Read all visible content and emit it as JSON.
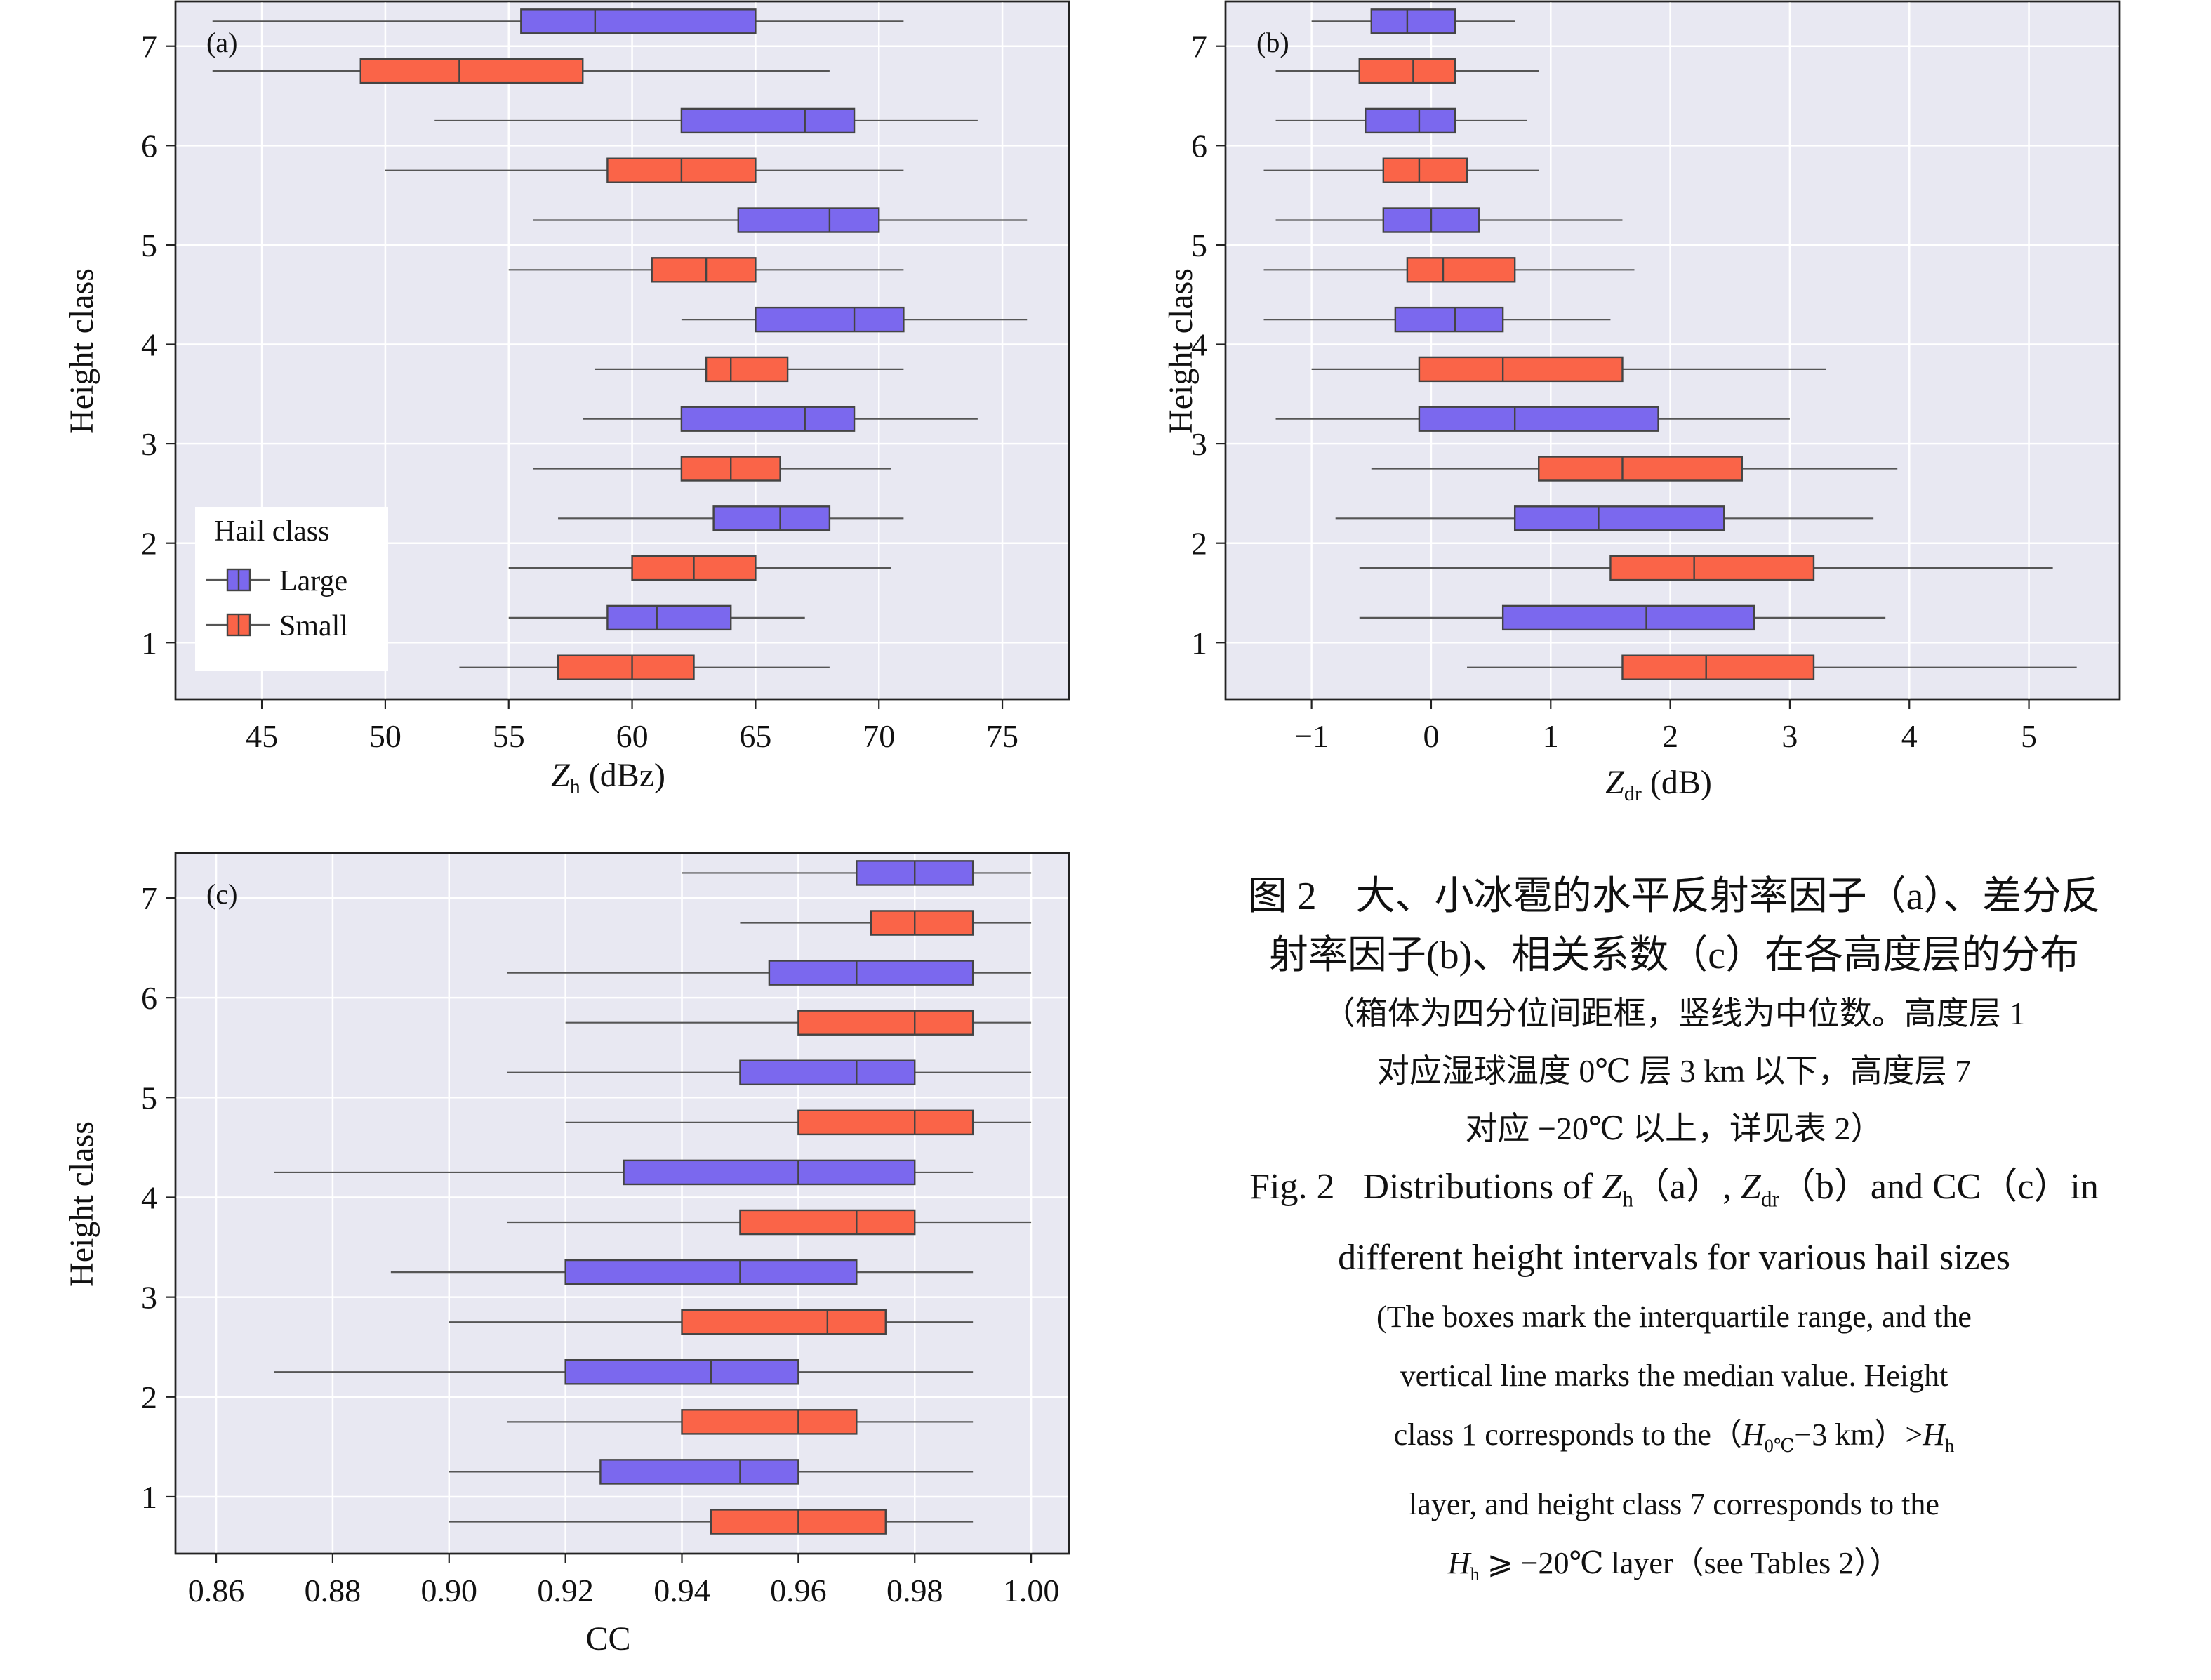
{
  "colors": {
    "large": "#7b68ee",
    "small": "#fa6448"
  },
  "legend": {
    "title": "Hail class",
    "large": "Large",
    "small": "Small"
  },
  "chart_data": [
    {
      "id": "a",
      "type": "box",
      "panel_label": "(a)",
      "xlabel_main": "Z",
      "xlabel_sub": "h",
      "xlabel_unit": " (dBz)",
      "ylabel": "Height class",
      "xlim": [
        41.5,
        77.7
      ],
      "xticks": [
        45,
        50,
        55,
        60,
        65,
        70,
        75
      ],
      "tick_labels": [
        "45",
        "50",
        "55",
        "60",
        "65",
        "70",
        "75"
      ],
      "categories": [
        "1",
        "2",
        "3",
        "4",
        "5",
        "6",
        "7"
      ],
      "show_legend": true,
      "series": [
        {
          "name": "Large",
          "boxes": [
            [
              55,
              59,
              61,
              64,
              67
            ],
            [
              57,
              63.3,
              66,
              68,
              71
            ],
            [
              58,
              62,
              67,
              69,
              74
            ],
            [
              62,
              65,
              69,
              71,
              76
            ],
            [
              56,
              64.3,
              68,
              70,
              76
            ],
            [
              52,
              62,
              67,
              69,
              74
            ],
            [
              43,
              55.5,
              58.5,
              65,
              71
            ]
          ]
        },
        {
          "name": "Small",
          "boxes": [
            [
              53,
              57,
              60,
              62.5,
              68
            ],
            [
              55,
              60,
              62.5,
              65,
              70.5
            ],
            [
              56,
              62,
              64,
              66,
              70.5
            ],
            [
              58.5,
              63,
              64,
              66.3,
              71
            ],
            [
              55,
              60.8,
              63,
              65,
              71
            ],
            [
              50,
              59,
              62,
              65,
              71
            ],
            [
              43,
              49,
              53,
              58,
              68
            ]
          ]
        }
      ]
    },
    {
      "id": "b",
      "type": "box",
      "panel_label": "(b)",
      "xlabel_main": "Z",
      "xlabel_sub": "dr",
      "xlabel_unit": " (dB)",
      "ylabel": "Height class",
      "xlim": [
        -1.72,
        5.76
      ],
      "xticks": [
        -1,
        0,
        1,
        2,
        3,
        4,
        5
      ],
      "tick_labels": [
        "−1",
        "0",
        "1",
        "2",
        "3",
        "4",
        "5"
      ],
      "categories": [
        "1",
        "2",
        "3",
        "4",
        "5",
        "6",
        "7"
      ],
      "show_legend": false,
      "series": [
        {
          "name": "Large",
          "boxes": [
            [
              -0.6,
              0.6,
              1.8,
              2.7,
              3.8
            ],
            [
              -0.8,
              0.7,
              1.4,
              2.45,
              3.7
            ],
            [
              -1.3,
              -0.1,
              0.7,
              1.9,
              3.0
            ],
            [
              -1.4,
              -0.3,
              0.2,
              0.6,
              1.5
            ],
            [
              -1.3,
              -0.4,
              0.0,
              0.4,
              1.6
            ],
            [
              -1.3,
              -0.55,
              -0.1,
              0.2,
              0.8
            ],
            [
              -1.0,
              -0.5,
              -0.2,
              0.2,
              0.7
            ]
          ]
        },
        {
          "name": "Small",
          "boxes": [
            [
              0.3,
              1.6,
              2.3,
              3.2,
              5.4
            ],
            [
              -0.6,
              1.5,
              2.2,
              3.2,
              5.2
            ],
            [
              -0.5,
              0.9,
              1.6,
              2.6,
              3.9
            ],
            [
              -1.0,
              -0.1,
              0.6,
              1.6,
              3.3
            ],
            [
              -1.4,
              -0.2,
              0.1,
              0.7,
              1.7
            ],
            [
              -1.4,
              -0.4,
              -0.1,
              0.3,
              0.9
            ],
            [
              -1.3,
              -0.6,
              -0.15,
              0.2,
              0.9
            ]
          ]
        }
      ]
    },
    {
      "id": "c",
      "type": "box",
      "panel_label": "(c)",
      "xlabel_main": "CC",
      "xlabel_sub": "",
      "xlabel_unit": "",
      "ylabel": "Height class",
      "xlim": [
        0.853,
        1.0065
      ],
      "xticks": [
        0.86,
        0.88,
        0.9,
        0.92,
        0.94,
        0.96,
        0.98,
        1.0
      ],
      "tick_labels": [
        "0.86",
        "0.88",
        "0.90",
        "0.92",
        "0.94",
        "0.96",
        "0.98",
        "1.00"
      ],
      "categories": [
        "1",
        "2",
        "3",
        "4",
        "5",
        "6",
        "7"
      ],
      "show_legend": false,
      "series": [
        {
          "name": "Large",
          "boxes": [
            [
              0.9,
              0.926,
              0.95,
              0.96,
              0.99
            ],
            [
              0.87,
              0.92,
              0.945,
              0.96,
              0.99
            ],
            [
              0.89,
              0.92,
              0.95,
              0.97,
              0.99
            ],
            [
              0.87,
              0.93,
              0.96,
              0.98,
              0.99
            ],
            [
              0.91,
              0.95,
              0.97,
              0.98,
              1.0
            ],
            [
              0.91,
              0.955,
              0.97,
              0.99,
              1.0
            ],
            [
              0.94,
              0.97,
              0.98,
              0.99,
              1.0
            ]
          ]
        },
        {
          "name": "Small",
          "boxes": [
            [
              0.9,
              0.945,
              0.96,
              0.975,
              0.99
            ],
            [
              0.91,
              0.94,
              0.96,
              0.97,
              0.99
            ],
            [
              0.9,
              0.94,
              0.965,
              0.975,
              0.99
            ],
            [
              0.91,
              0.95,
              0.97,
              0.98,
              1.0
            ],
            [
              0.92,
              0.96,
              0.98,
              0.99,
              1.0
            ],
            [
              0.92,
              0.96,
              0.98,
              0.99,
              1.0
            ],
            [
              0.95,
              0.9725,
              0.98,
              0.99,
              1.0
            ]
          ]
        }
      ]
    }
  ],
  "caption": {
    "cn_title_1": "图 2　大、小冰雹的水平反射率因子（a）、差分反",
    "cn_title_2": "射率因子(b)、相关系数（c）在各高度层的分布",
    "cn_note_1": "（箱体为四分位间距框，竖线为中位数。高度层 1",
    "cn_note_2": "对应湿球温度 0℃ 层 3 km 以下，高度层 7",
    "cn_note_3": "对应 −20℃ 以上，详见表 2）",
    "en_label": "Fig. 2",
    "en_t1_a": "Distributions of ",
    "en_t1_z": "Z",
    "en_t1_h": "h",
    "en_t1_b": "（a）, ",
    "en_t1_dr": "dr",
    "en_t1_c": "（b）and CC（c）in",
    "en_title_2": "different height intervals for various hail sizes",
    "en_note_1": "(The boxes mark the interquartile range, and the",
    "en_note_2": "vertical line marks the median value. Height",
    "en_n3_a": "class 1 corresponds to the（",
    "en_n3_h": "H",
    "en_n3_sub": "0℃",
    "en_n3_b": "−3 km）>",
    "en_n3_hh": "H",
    "en_n3_hsub": "h",
    "en_note_4": "layer, and height class 7 corresponds to the",
    "en_n5_h": "H",
    "en_n5_sub": "h",
    "en_n5_rest": " ⩾ −20℃ layer（see Tables 2））"
  }
}
